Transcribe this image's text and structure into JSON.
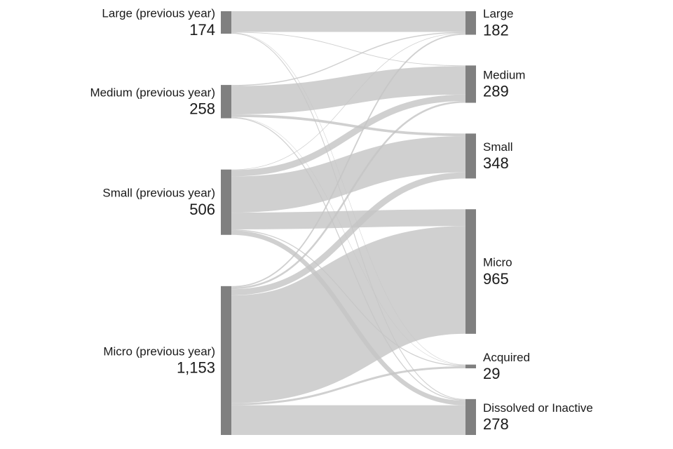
{
  "chart_data": {
    "type": "sankey",
    "sources": {
      "names": [
        "Large (previous year)",
        "Medium (previous year)",
        "Small (previous year)",
        "Micro (previous year)"
      ],
      "values": [
        174,
        258,
        506,
        1153
      ],
      "value_labels": [
        "174",
        "258",
        "506",
        "1,153"
      ]
    },
    "targets": {
      "names": [
        "Large",
        "Medium",
        "Small",
        "Micro",
        "Acquired",
        "Dissolved or Inactive"
      ],
      "values": [
        182,
        289,
        348,
        965,
        29,
        278
      ]
    },
    "flows": [
      [
        160,
        5,
        0,
        0,
        3,
        6
      ],
      [
        8,
        220,
        20,
        0,
        3,
        7
      ],
      [
        4,
        50,
        280,
        130,
        7,
        35
      ],
      [
        10,
        14,
        48,
        835,
        16,
        230
      ]
    ],
    "node_color": "#808080",
    "link_color": "#c4c4c4"
  }
}
